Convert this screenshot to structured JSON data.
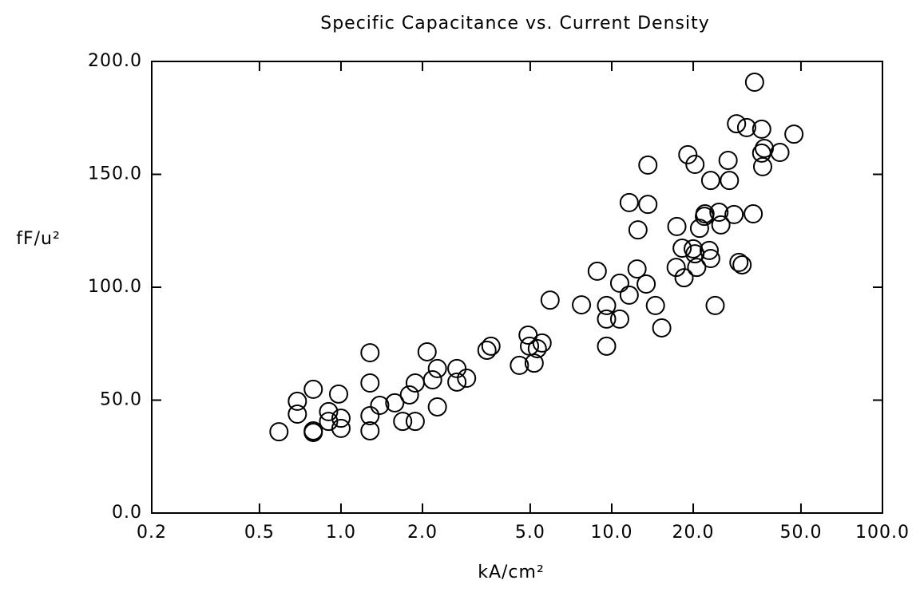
{
  "chart_data": {
    "type": "scatter",
    "title": "Specific Capacitance vs. Current Density",
    "x_label": "kA/cm²",
    "y_label": "fF/u²",
    "log_x": true,
    "xlim": [
      0.2,
      100
    ],
    "ylim": [
      0,
      200
    ],
    "xticks": [
      0.2,
      0.5,
      {
        "value": 1,
        "label": "1.0"
      },
      {
        "value": 2,
        "label": "2.0"
      },
      {
        "value": 5,
        "label": "5.0"
      },
      {
        "value": 10,
        "label": "10.0"
      },
      {
        "value": 20,
        "label": "20.0"
      },
      {
        "value": 50,
        "label": "50.0"
      },
      {
        "value": 100,
        "label": "100.0"
      }
    ],
    "yticks": [
      {
        "value": 0,
        "label": "0.0"
      },
      {
        "value": 50,
        "label": "50.0"
      },
      {
        "value": 100,
        "label": "100.0"
      },
      {
        "value": 150,
        "label": "150.0"
      },
      {
        "value": 200,
        "label": "200.0"
      }
    ],
    "color": "#000000",
    "x": [
      0.59,
      0.69,
      0.69,
      0.79,
      0.79,
      0.79,
      0.9,
      0.9,
      0.98,
      1.0,
      1.0,
      1.28,
      1.28,
      1.28,
      1.28,
      1.39,
      1.58,
      1.69,
      1.79,
      1.88,
      1.88,
      2.08,
      2.18,
      2.27,
      2.27,
      2.68,
      2.68,
      2.91,
      3.46,
      3.58,
      4.56,
      4.91,
      4.97,
      5.17,
      5.31,
      5.53,
      5.92,
      7.73,
      8.84,
      9.57,
      9.57,
      9.57,
      10.7,
      10.7,
      11.6,
      11.6,
      12.4,
      12.5,
      13.4,
      13.6,
      13.6,
      14.5,
      15.3,
      17.4,
      17.3,
      18.2,
      18.5,
      19.1,
      20.0,
      20.3,
      20.3,
      20.6,
      21.1,
      22.0,
      22.1,
      22.9,
      23.2,
      23.2,
      24.1,
      24.9,
      25.3,
      26.9,
      27.2,
      28.3,
      28.9,
      29.5,
      30.3,
      31.5,
      33.3,
      33.7,
      35.8,
      36.1,
      35.8,
      36.6,
      41.8,
      47.1
    ],
    "y": [
      36.0,
      49.5,
      43.8,
      54.8,
      36.4,
      35.7,
      44.9,
      40.6,
      52.7,
      42.0,
      37.5,
      71.0,
      57.6,
      43.1,
      36.4,
      47.7,
      48.8,
      40.6,
      52.3,
      57.6,
      40.6,
      71.4,
      59.0,
      64.0,
      47.0,
      64.0,
      58.0,
      59.7,
      72.1,
      73.9,
      65.4,
      78.8,
      73.9,
      66.4,
      72.8,
      75.3,
      94.3,
      92.2,
      107.1,
      91.9,
      85.9,
      73.9,
      85.9,
      101.8,
      96.5,
      137.5,
      108.1,
      125.4,
      101.4,
      154.1,
      136.7,
      91.9,
      82.0,
      126.9,
      108.8,
      117.3,
      104.2,
      158.7,
      117.0,
      114.8,
      154.4,
      108.8,
      126.1,
      131.4,
      132.5,
      116.3,
      112.7,
      147.3,
      91.9,
      133.2,
      127.6,
      156.2,
      147.3,
      132.2,
      172.4,
      111.0,
      109.9,
      170.7,
      132.5,
      190.8,
      170.0,
      153.4,
      159.4,
      161.5,
      159.7,
      167.8
    ]
  }
}
